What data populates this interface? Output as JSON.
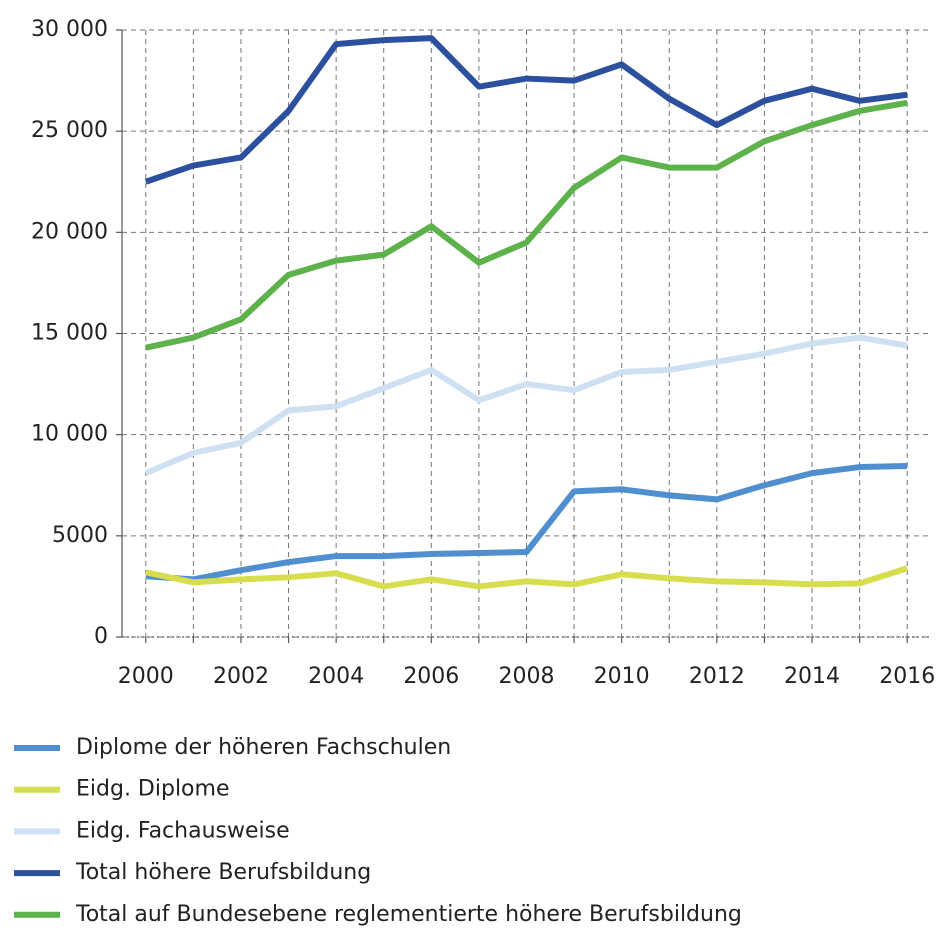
{
  "chart_data": {
    "type": "line",
    "x": [
      2000,
      2001,
      2002,
      2003,
      2004,
      2005,
      2006,
      2007,
      2008,
      2009,
      2010,
      2011,
      2012,
      2013,
      2014,
      2015,
      2016
    ],
    "series": [
      {
        "name": "Diplome der höheren Fachschulen",
        "color": "#4f8fd0",
        "values": [
          3000,
          2850,
          3300,
          3700,
          4000,
          4000,
          4100,
          4150,
          4200,
          7200,
          7300,
          7000,
          6800,
          7500,
          8100,
          8400,
          8450
        ]
      },
      {
        "name": "Eidg. Diplome",
        "color": "#d6de4e",
        "values": [
          3200,
          2700,
          2850,
          2950,
          3150,
          2500,
          2850,
          2500,
          2750,
          2600,
          3100,
          2900,
          2750,
          2700,
          2600,
          2650,
          3400
        ]
      },
      {
        "name": "Eidg. Fachausweise",
        "color": "#cfe0f2",
        "values": [
          8100,
          9100,
          9600,
          11200,
          11400,
          12300,
          13200,
          11700,
          12500,
          12200,
          13100,
          13200,
          13600,
          14000,
          14500,
          14800,
          14400
        ]
      },
      {
        "name": "Total höhere Berufsbildung",
        "color": "#2c4f9e",
        "values": [
          22500,
          23300,
          23700,
          26000,
          29300,
          29500,
          29600,
          27200,
          27600,
          27500,
          28300,
          26600,
          25300,
          26500,
          27100,
          26500,
          26800
        ]
      },
      {
        "name": "Total auf Bundesebene reglementierte höhere Berufsbildung",
        "color": "#5db24b",
        "values": [
          14300,
          14800,
          15700,
          17900,
          18600,
          18900,
          20300,
          18500,
          19500,
          22200,
          23700,
          23200,
          23200,
          24500,
          25300,
          26000,
          26400
        ]
      }
    ],
    "xlim": [
      1999.5,
      2016.5
    ],
    "xticks": [
      2000,
      2002,
      2004,
      2006,
      2008,
      2010,
      2012,
      2014,
      2016
    ],
    "xminorticks": [
      2001,
      2003,
      2005,
      2007,
      2009,
      2011,
      2013,
      2015
    ],
    "ylim": [
      0,
      30000
    ],
    "yticks": [
      0,
      5000,
      {
        "value": 10000,
        "label": "10 000"
      },
      {
        "value": 15000,
        "label": "15 000"
      },
      {
        "value": 20000,
        "label": "20 000"
      },
      {
        "value": 25000,
        "label": "25 000"
      },
      {
        "value": 30000,
        "label": "30 000"
      }
    ],
    "grid": true,
    "legend": "bottom"
  }
}
